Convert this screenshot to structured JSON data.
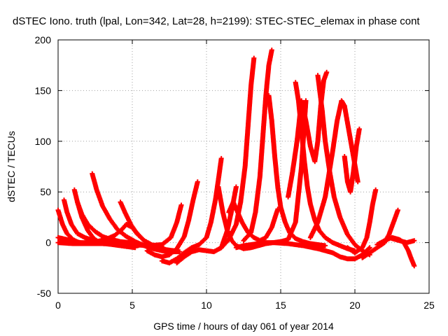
{
  "chart_data": {
    "type": "scatter",
    "title": "dSTEC Iono. truth (lpal, Lon=342, Lat=28, h=2199): STEC-STEC_elemax in phase cont",
    "xlabel": "GPS time / hours of day 061 of year 2014",
    "ylabel": "dSTEC  / TECUs",
    "xlim": [
      0,
      25
    ],
    "ylim": [
      -50,
      200
    ],
    "x_ticks": [
      0,
      5,
      10,
      15,
      20,
      25
    ],
    "y_ticks": [
      -50,
      0,
      50,
      100,
      150,
      200
    ],
    "x_tick_labels": [
      "0",
      "5",
      "10",
      "15",
      "20",
      "25"
    ],
    "y_tick_labels": [
      "-50",
      "0",
      "50",
      "100",
      "150",
      "200"
    ],
    "grid": true,
    "marker": "plus",
    "color": "#ff0000",
    "series": [
      {
        "x": [
          0.0,
          0.3,
          0.6,
          0.9,
          1.2,
          1.5
        ],
        "y": [
          5,
          4,
          3,
          2,
          1,
          0
        ]
      },
      {
        "x": [
          0.0,
          0.3,
          0.6,
          1.0,
          1.4,
          2.0,
          2.6,
          3.2,
          3.8,
          4.3,
          4.6,
          5.0,
          5.4,
          5.8,
          6.2,
          6.6,
          7.0
        ],
        "y": [
          32,
          18,
          9,
          3,
          0,
          0,
          1,
          3,
          7,
          13,
          18,
          15,
          8,
          2,
          -2,
          -4,
          -4
        ]
      },
      {
        "x": [
          0.4,
          0.6,
          0.9,
          1.3,
          1.8,
          2.4,
          3.0,
          3.6,
          4.2,
          4.8,
          5.4
        ],
        "y": [
          42,
          30,
          18,
          9,
          5,
          2,
          0,
          -1,
          -2,
          -3,
          -3
        ]
      },
      {
        "x": [
          1.1,
          1.3,
          1.6,
          2.0,
          2.5,
          3.0,
          3.6,
          4.2,
          4.8,
          5.4,
          6.0,
          6.6,
          7.2
        ],
        "y": [
          52,
          40,
          28,
          18,
          11,
          6,
          3,
          1,
          0,
          -1,
          -3,
          -5,
          -8
        ]
      },
      {
        "x": [
          1.3,
          1.6,
          2.0,
          2.4,
          2.8,
          3.2,
          3.7,
          4.2,
          4.7,
          5.2
        ],
        "y": [
          40,
          25,
          12,
          4,
          0,
          -1,
          -2,
          -3,
          -4,
          -5
        ]
      },
      {
        "x": [
          2.3,
          2.6,
          3.0,
          3.5,
          4.0,
          4.6,
          5.2,
          5.8,
          6.4,
          7.0,
          7.6,
          8.2
        ],
        "y": [
          68,
          52,
          36,
          23,
          13,
          6,
          1,
          -3,
          -6,
          -8,
          -9,
          -9
        ]
      },
      {
        "x": [
          4.2,
          4.5,
          4.9,
          5.3,
          5.8,
          6.3,
          6.8,
          7.3,
          7.8
        ],
        "y": [
          40,
          30,
          18,
          9,
          2,
          -2,
          -5,
          -7,
          -8
        ]
      },
      {
        "x": [
          0.0,
          1.0,
          2.0,
          3.0,
          4.0,
          5.0,
          6.0,
          7.0,
          7.6,
          8.0,
          8.3
        ],
        "y": [
          0,
          -1,
          -1,
          -1,
          -2,
          -2,
          -3,
          -2,
          5,
          20,
          37
        ]
      },
      {
        "x": [
          6.0,
          6.5,
          7.0,
          7.5,
          8.0,
          8.5,
          8.8,
          9.1,
          9.4
        ],
        "y": [
          -8,
          -12,
          -14,
          -12,
          -6,
          6,
          22,
          42,
          60
        ]
      },
      {
        "x": [
          7.0,
          7.5,
          8.0,
          8.5,
          9.0,
          9.5,
          10.0,
          10.3,
          10.6,
          10.8,
          11.0
        ],
        "y": [
          -18,
          -20,
          -16,
          -10,
          -5,
          -2,
          5,
          20,
          42,
          62,
          83
        ]
      },
      {
        "x": [
          8.0,
          8.5,
          9.0,
          9.5,
          10.0,
          10.5,
          11.0,
          11.4,
          11.7,
          12.0
        ],
        "y": [
          -20,
          -14,
          -9,
          -7,
          -8,
          -9,
          -5,
          12,
          32,
          55
        ]
      },
      {
        "x": [
          10.8,
          11.1,
          11.4,
          11.7,
          12.0,
          12.5,
          13.0,
          13.5,
          14.0
        ],
        "y": [
          55,
          30,
          12,
          2,
          -3,
          -6,
          -5,
          -3,
          -1
        ]
      },
      {
        "x": [
          11.5,
          11.8,
          12.1,
          12.4,
          12.8,
          13.2,
          13.6,
          14.0,
          14.4,
          14.8
        ],
        "y": [
          30,
          40,
          30,
          20,
          10,
          5,
          2,
          5,
          15,
          33
        ]
      },
      {
        "x": [
          11.0,
          11.5,
          12.0,
          12.3,
          12.6,
          12.8,
          13.0,
          13.2
        ],
        "y": [
          -5,
          3,
          18,
          40,
          75,
          115,
          155,
          182
        ]
      },
      {
        "x": [
          12.5,
          13.0,
          13.3,
          13.6,
          13.8,
          14.0,
          14.2,
          14.4
        ],
        "y": [
          2,
          10,
          30,
          65,
          105,
          145,
          175,
          190
        ]
      },
      {
        "x": [
          14.2,
          14.4,
          14.6,
          14.8,
          15.0,
          15.3,
          15.6,
          16.0,
          16.5,
          17.0,
          17.5,
          18.0
        ],
        "y": [
          145,
          120,
          85,
          55,
          35,
          20,
          10,
          4,
          1,
          -1,
          -2,
          -3
        ]
      },
      {
        "x": [
          12.0,
          12.5,
          13.0,
          13.5,
          14.0,
          14.5,
          15.0,
          15.5,
          16.0,
          16.4,
          16.7
        ],
        "y": [
          -5,
          -3,
          -2,
          -1,
          -1,
          0,
          1,
          3,
          20,
          75,
          140
        ]
      },
      {
        "x": [
          16.0,
          16.2,
          16.4,
          16.6,
          16.8,
          17.0,
          17.3,
          17.6,
          18.0,
          18.5,
          19.0,
          19.5,
          20.0
        ],
        "y": [
          158,
          140,
          110,
          80,
          55,
          38,
          22,
          12,
          5,
          0,
          -3,
          -6,
          -8
        ]
      },
      {
        "x": [
          15.5,
          15.8,
          16.1,
          16.4,
          16.7,
          17.0,
          17.3,
          17.5,
          17.7,
          17.9,
          18.1
        ],
        "y": [
          45,
          70,
          100,
          140,
          120,
          95,
          80,
          100,
          135,
          160,
          168
        ]
      },
      {
        "x": [
          17.5,
          17.8,
          18.0,
          18.3,
          18.6,
          19.0,
          19.5,
          20.0,
          20.5,
          21.0
        ],
        "y": [
          165,
          130,
          100,
          70,
          45,
          25,
          8,
          -2,
          -8,
          -12
        ]
      },
      {
        "x": [
          17.0,
          17.5,
          18.0,
          18.5,
          18.8,
          19.1,
          19.3,
          19.6,
          19.9,
          20.2
        ],
        "y": [
          5,
          20,
          45,
          90,
          120,
          140,
          135,
          110,
          85,
          60
        ]
      },
      {
        "x": [
          19.3,
          19.5,
          19.7,
          19.9,
          20.1,
          20.3
        ],
        "y": [
          85,
          60,
          50,
          70,
          95,
          112
        ]
      },
      {
        "x": [
          13.5,
          14.5,
          15.5,
          16.5,
          17.5,
          18.5,
          19.0,
          19.5,
          20.0,
          20.5,
          21.0
        ],
        "y": [
          0,
          0,
          -1,
          -3,
          -6,
          -10,
          -14,
          -16,
          -16,
          -12,
          -5
        ]
      },
      {
        "x": [
          19.5,
          20.0,
          20.5,
          20.8,
          21.0,
          21.2,
          21.4
        ],
        "y": [
          -5,
          -10,
          -5,
          5,
          20,
          38,
          52
        ]
      },
      {
        "x": [
          20.5,
          21.0,
          21.5,
          22.0,
          22.3,
          22.6,
          22.9
        ],
        "y": [
          -15,
          -10,
          -5,
          0,
          8,
          20,
          32
        ]
      },
      {
        "x": [
          21.5,
          22.0,
          22.5,
          23.0,
          23.3,
          23.6,
          23.8,
          24.0
        ],
        "y": [
          -2,
          2,
          5,
          3,
          0,
          -8,
          -16,
          -23
        ]
      },
      {
        "x": [
          22.5,
          23.0,
          23.5,
          24.0
        ],
        "y": [
          4,
          2,
          0,
          2
        ]
      }
    ]
  }
}
